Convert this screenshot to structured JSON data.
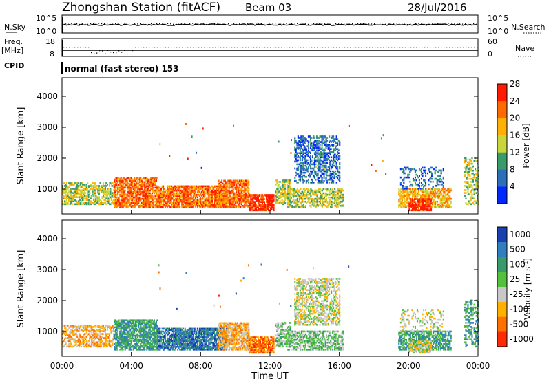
{
  "header": {
    "station": "Zhongshan Station (fitACF)",
    "beam": "Beam 03",
    "date": "28/Jul/2016"
  },
  "strip": {
    "nsky_label": "N.Sky",
    "nsky_ticks": [
      "10^5",
      "10^0"
    ],
    "nsearch_label": "N.Search",
    "nsearch_ticks": [
      "10^5",
      "10^0"
    ],
    "freq_label_1": "Freq.",
    "freq_label_2": "[MHz]",
    "freq_ticks": [
      "18",
      "8"
    ],
    "nave_label": "Nave",
    "nave_ticks": [
      "60",
      "0"
    ],
    "cpid_label": "CPID",
    "cpid_value": "normal (fast stereo) 153"
  },
  "chart_data": [
    {
      "type": "heatmap",
      "name": "power",
      "ylabel": "Slant Range [km]",
      "yticks": [
        "1000",
        "2000",
        "3000",
        "4000"
      ],
      "ylim": [
        200,
        4600
      ],
      "colorbar_label": "Power [dB]",
      "colorbar_ticks": [
        "4",
        "8",
        "12",
        "16",
        "20",
        "24",
        "28"
      ],
      "colors": [
        "#0028ff",
        "#2c6fb8",
        "#3a9a6a",
        "#c8d63a",
        "#ffb000",
        "#ff6a00",
        "#ff1a00"
      ]
    },
    {
      "type": "heatmap",
      "name": "velocity",
      "ylabel": "Slant Range [km]",
      "yticks": [
        "1000",
        "2000",
        "3000",
        "4000"
      ],
      "ylim": [
        200,
        4600
      ],
      "colorbar_label": "Velocity [m s",
      "colorbar_label_sup": "-1",
      "colorbar_label_end": "]",
      "colorbar_ticks": [
        "1000",
        "500",
        "100",
        "25",
        "-25",
        "-100",
        "-500",
        "-1000"
      ],
      "colors": [
        "#1a3fb0",
        "#2f7fbf",
        "#3a9a6a",
        "#55c040",
        "#c8c8c8",
        "#ffb000",
        "#ff7000",
        "#ff2a00"
      ]
    }
  ],
  "xaxis": {
    "ticks": [
      "00:00",
      "04:00",
      "08:00",
      "12:00",
      "16:00",
      "20:00",
      "00:00"
    ],
    "label": "Time UT"
  }
}
